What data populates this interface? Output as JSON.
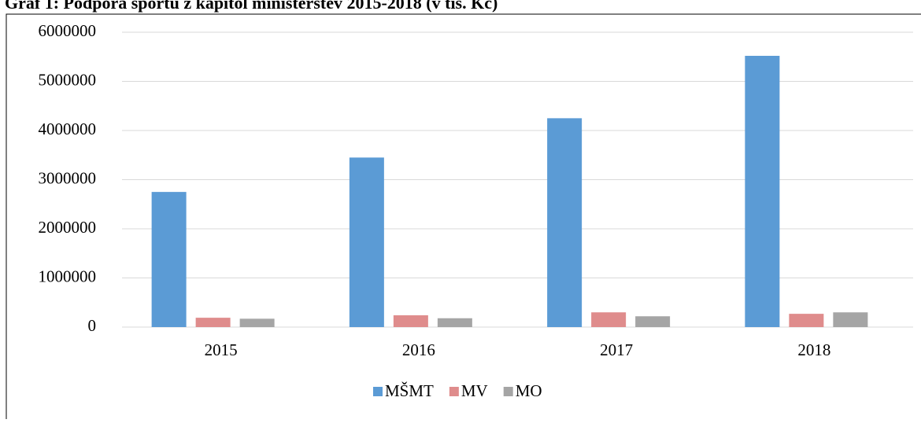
{
  "chart_data": {
    "type": "bar",
    "title": "Graf 1: Podpora sportu z kapitol ministerstev 2015-2018 (v tis. Kč)",
    "categories": [
      "2015",
      "2016",
      "2017",
      "2018"
    ],
    "series": [
      {
        "name": "MŠMT",
        "color": "#5b9bd5",
        "values": [
          2750000,
          3450000,
          4250000,
          5520000
        ]
      },
      {
        "name": "MV",
        "color": "#df8c8c",
        "values": [
          190000,
          240000,
          300000,
          270000
        ]
      },
      {
        "name": "MO",
        "color": "#a5a5a5",
        "values": [
          170000,
          180000,
          220000,
          300000
        ]
      }
    ],
    "ylim": [
      0,
      6000000
    ],
    "yticks": [
      0,
      1000000,
      2000000,
      3000000,
      4000000,
      5000000,
      6000000
    ],
    "grid": true,
    "legend": "bottom"
  }
}
